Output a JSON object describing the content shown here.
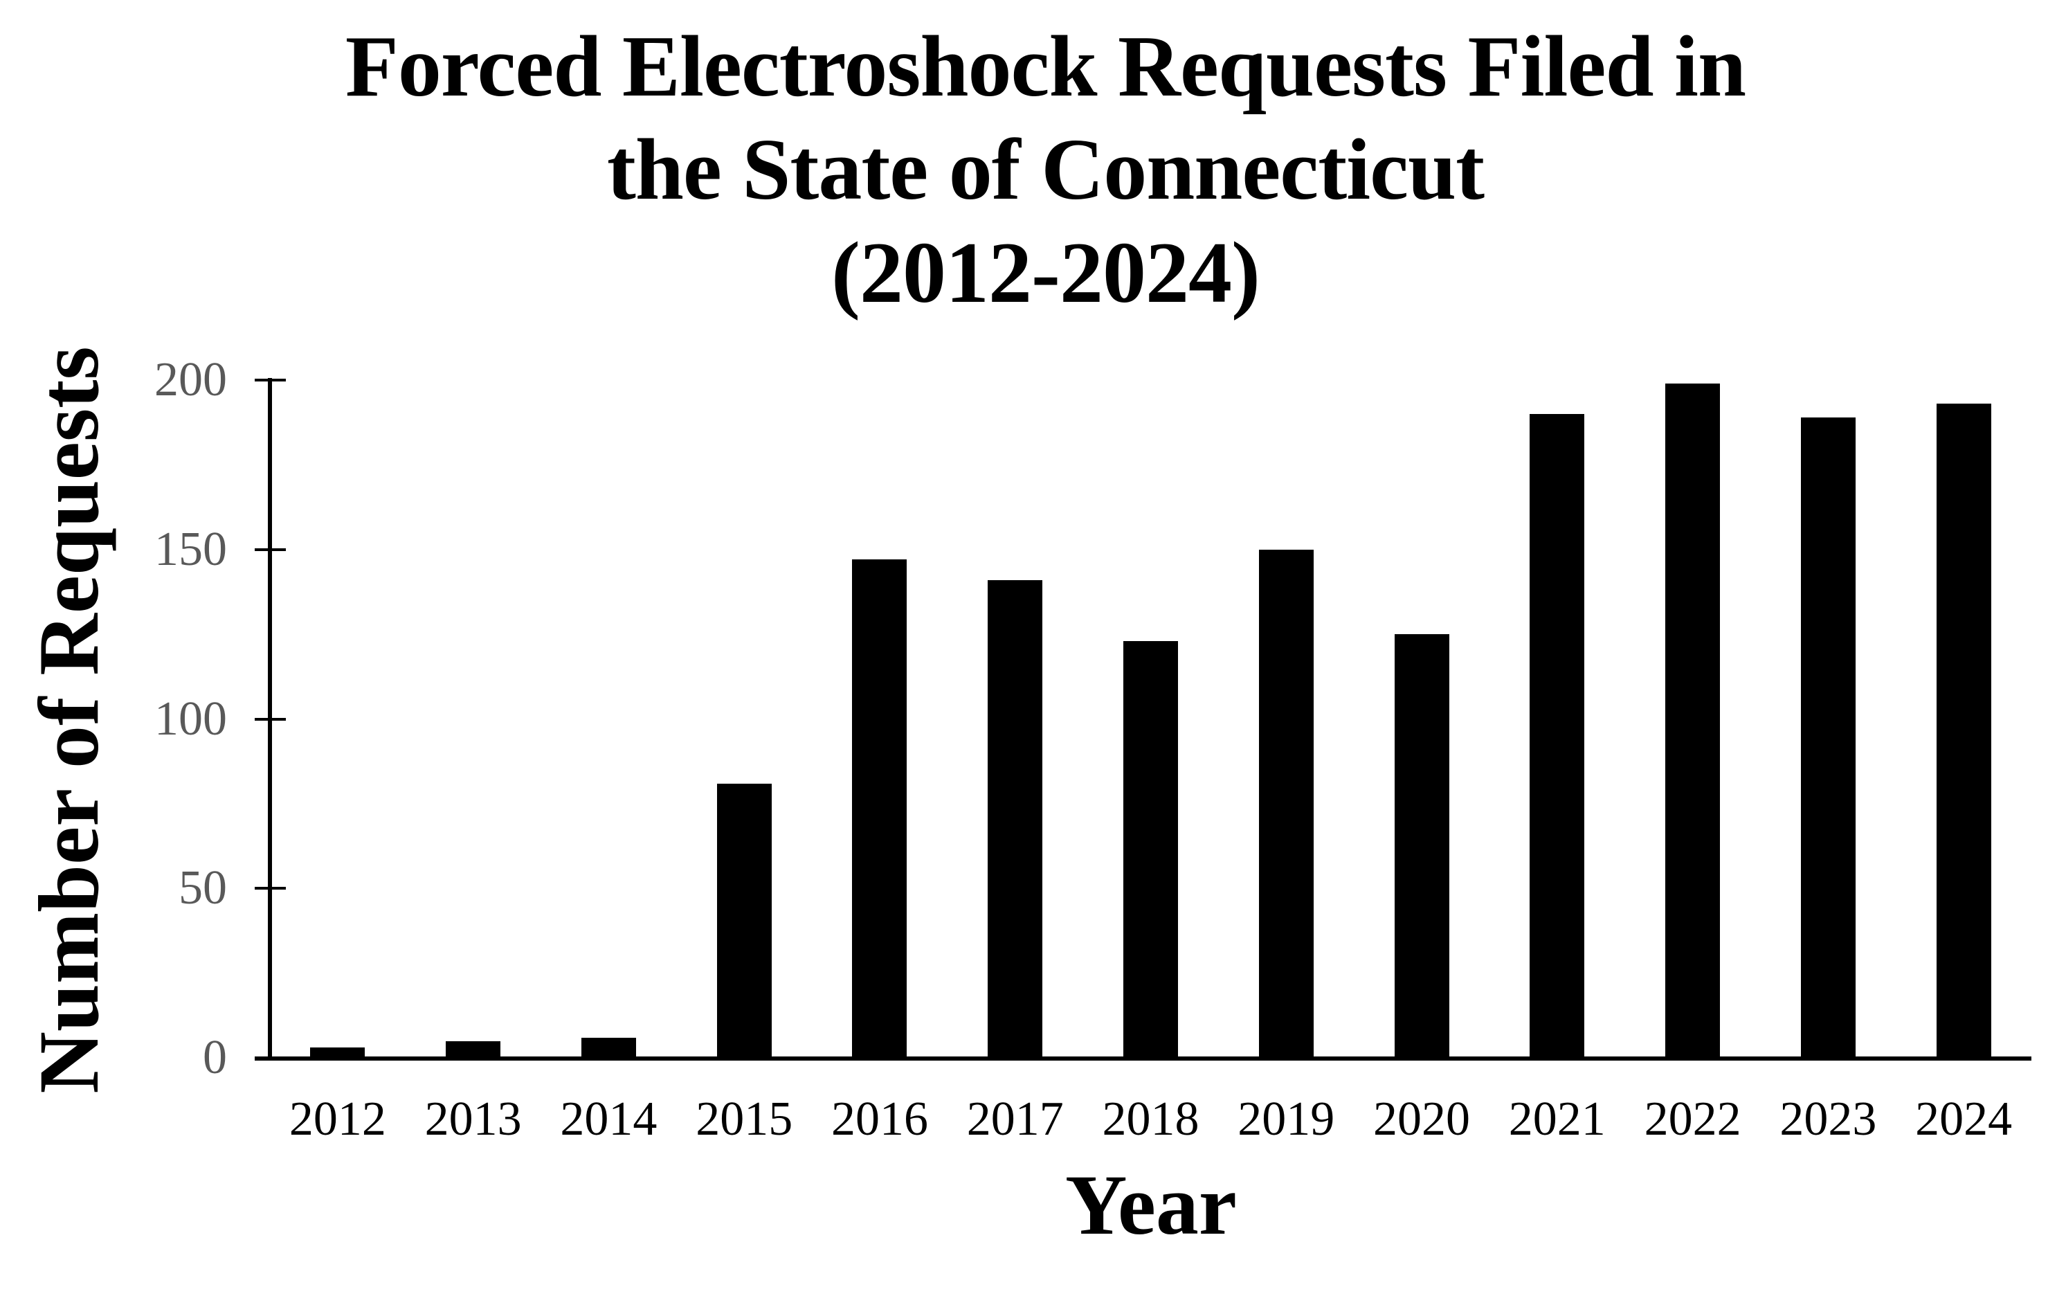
{
  "chart_data": {
    "type": "bar",
    "title_lines": [
      "Forced Electroshock Requests Filed in",
      "the State of Connecticut",
      "(2012-2024)"
    ],
    "title": "Forced Electroshock Requests Filed in the State of Connecticut (2012-2024)",
    "xlabel": "Year",
    "ylabel": "Number of Requests",
    "categories": [
      "2012",
      "2013",
      "2014",
      "2015",
      "2016",
      "2017",
      "2018",
      "2019",
      "2020",
      "2021",
      "2022",
      "2023",
      "2024"
    ],
    "values": [
      3,
      5,
      6,
      81,
      147,
      141,
      123,
      150,
      125,
      190,
      199,
      189,
      193
    ],
    "ylim": [
      0,
      200
    ],
    "yticks": [
      0,
      50,
      100,
      150,
      200
    ],
    "grid": "off",
    "legend": "none",
    "bar_color": "#000000",
    "axis_color": "#000000",
    "tick_label_color": "#595959",
    "background_color": "#ffffff"
  }
}
